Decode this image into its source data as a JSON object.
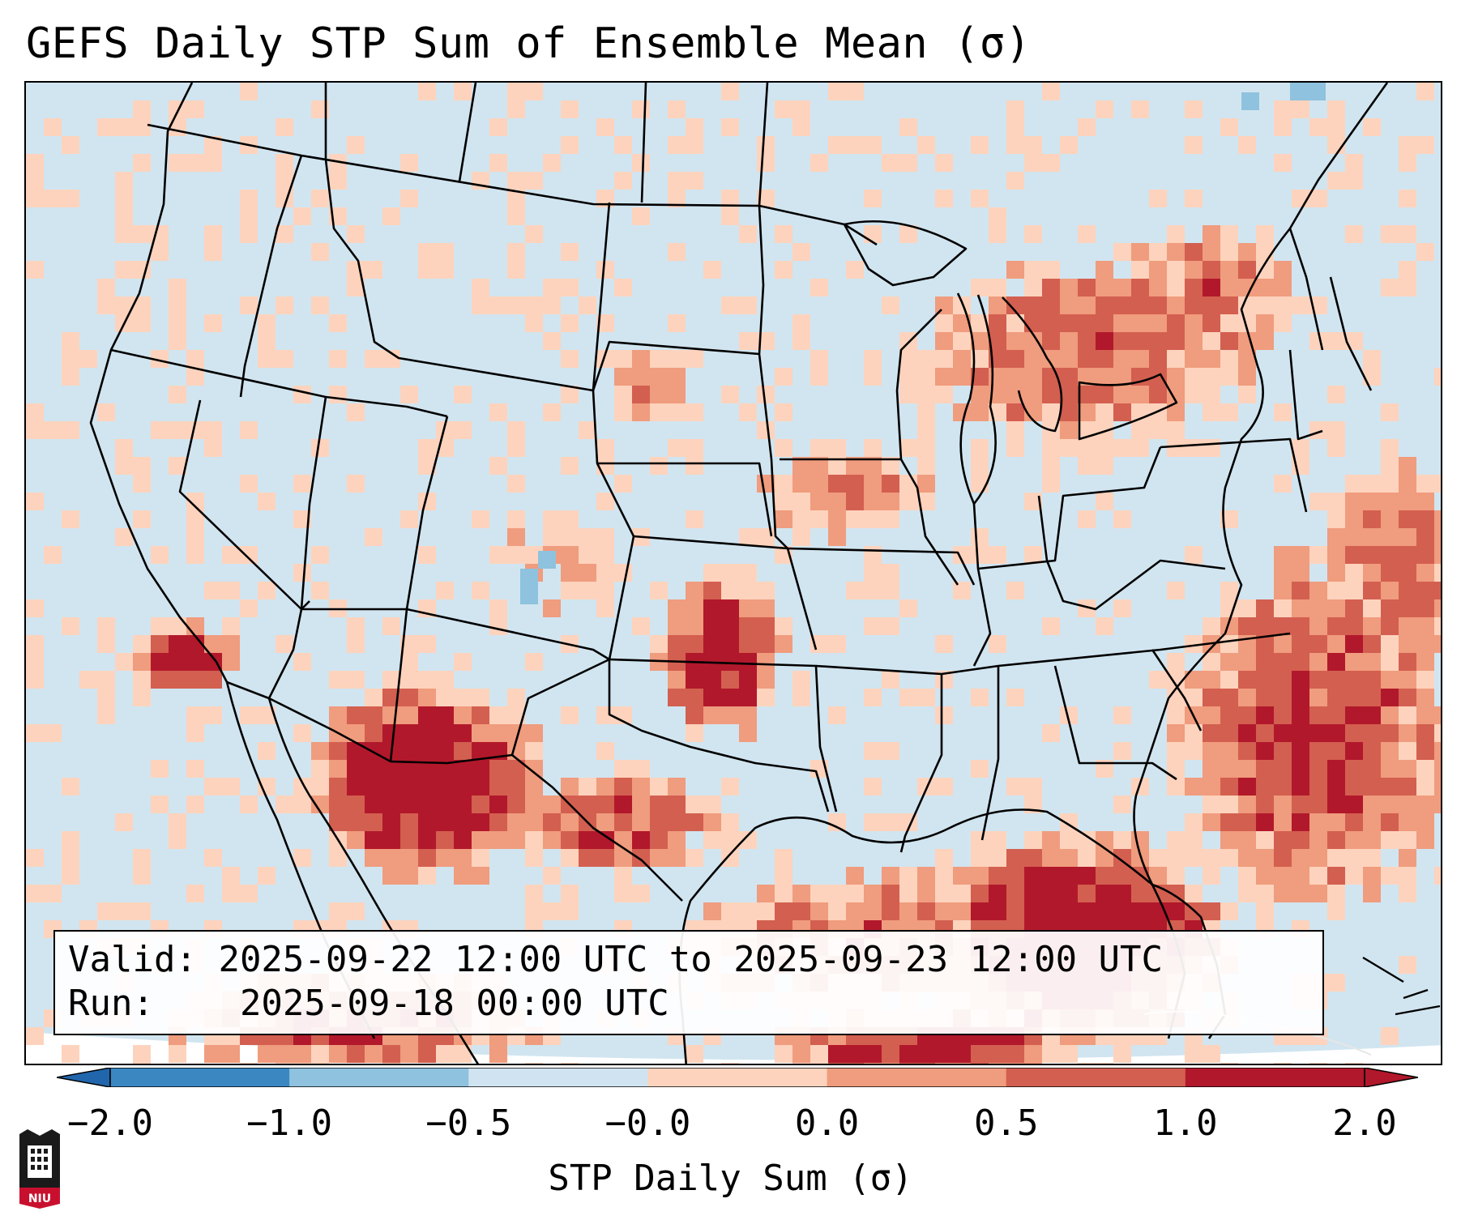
{
  "title": "GEFS Daily STP Sum of Ensemble Mean (σ)",
  "valid_label": "Valid:",
  "valid_value": "2025-09-22 12:00 UTC to 2025-09-23 12:00 UTC",
  "run_label": "Run:",
  "run_value": "2025-09-18 00:00 UTC",
  "colorbar": {
    "label": "STP Daily Sum (σ)",
    "ticks": [
      "−2.0",
      "−1.0",
      "−0.5",
      "−0.0",
      "0.0",
      "0.5",
      "1.0",
      "2.0"
    ],
    "colors": [
      "#3b87c2",
      "#8fc2de",
      "#cfe4f0",
      "#fbfbfb",
      "#fdd3bd",
      "#f09c7e",
      "#d35f50",
      "#b2182b"
    ],
    "extend_low": "#2166ac",
    "extend_high": "#b2182b"
  },
  "map": {
    "ocean_color": "#d1e5f0",
    "background_color": "#ffffff",
    "border_color": "#000000",
    "region": "Continental United States, northern Mexico and Gulf of Mexico"
  },
  "logo": {
    "text": "NIU",
    "name": "NIU"
  }
}
